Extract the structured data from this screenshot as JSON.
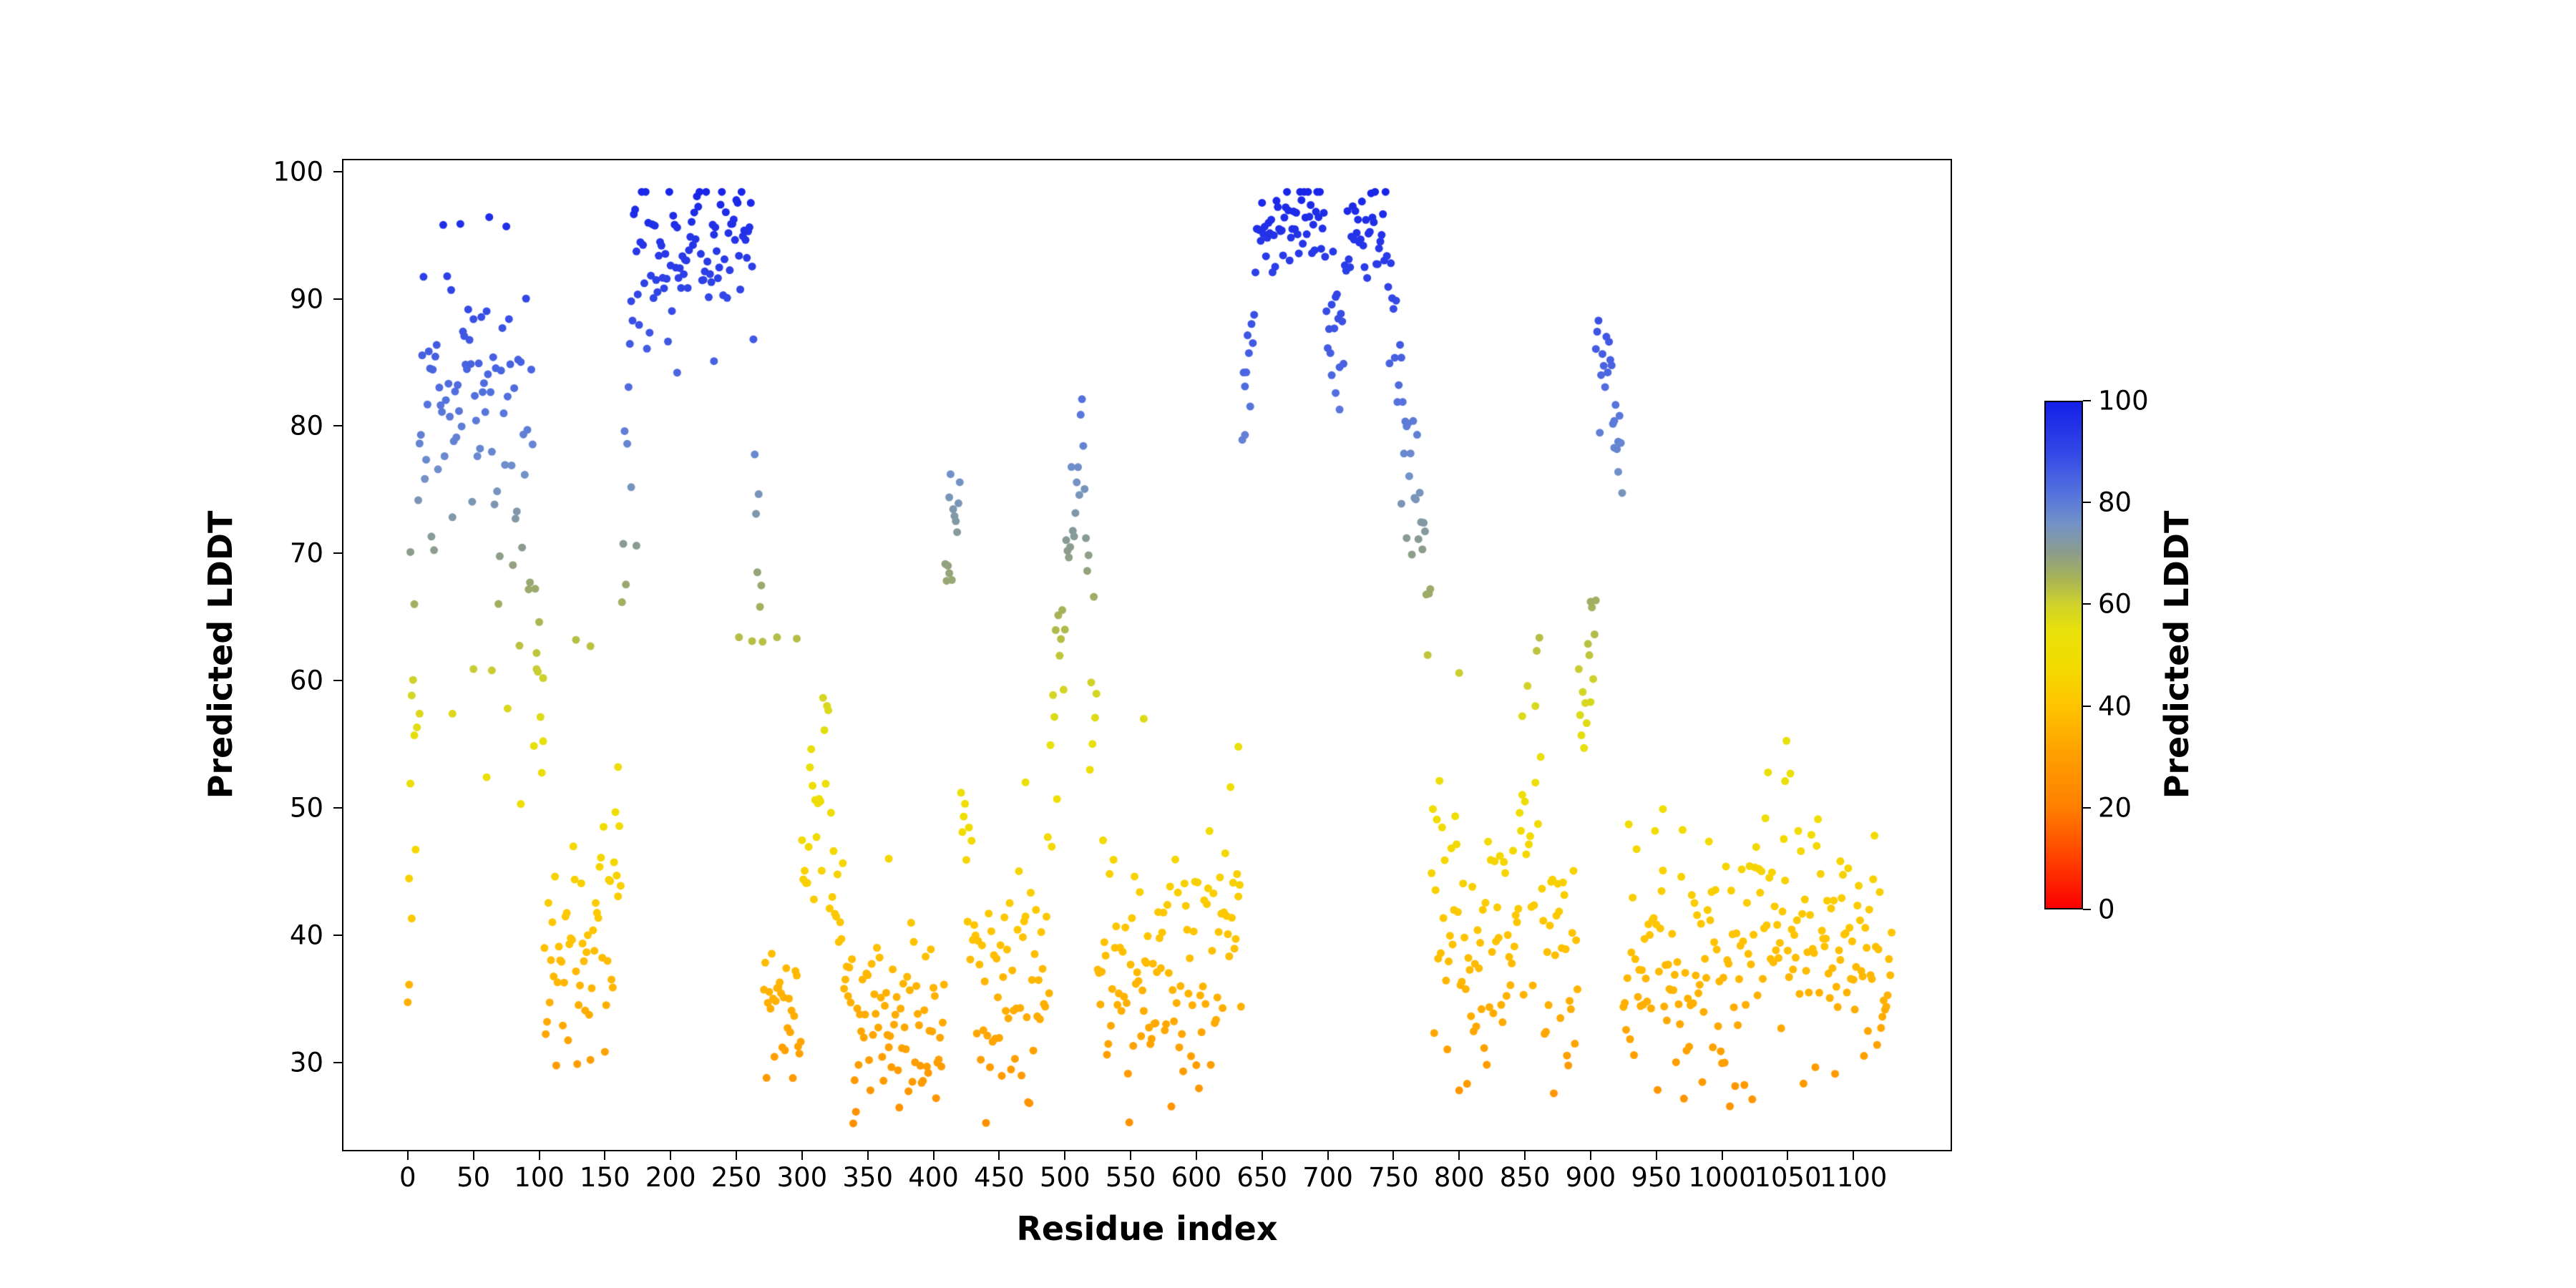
{
  "figure": {
    "background": "#ffffff",
    "text_color": "#000000"
  },
  "chart_data": {
    "type": "scatter",
    "title": "",
    "xlabel": "Residue index",
    "ylabel": "Predicted LDDT",
    "xlim": [
      -50,
      1175
    ],
    "ylim": [
      23,
      101
    ],
    "xticks": [
      0,
      50,
      100,
      150,
      200,
      250,
      300,
      350,
      400,
      450,
      500,
      550,
      600,
      650,
      700,
      750,
      800,
      850,
      900,
      950,
      1000,
      1050,
      1100
    ],
    "yticks": [
      30,
      40,
      50,
      60,
      70,
      80,
      90,
      100
    ],
    "grid": false,
    "legend": "none",
    "marker_radius_px": 5.5,
    "n_residues": 1130,
    "seed": 20,
    "value_clip": [
      25.2,
      98.4
    ],
    "colorbar": {
      "label": "Predicted LDDT",
      "min": 0,
      "max": 100,
      "ticks": [
        0,
        20,
        40,
        60,
        80,
        100
      ],
      "stops": [
        [
          0.0,
          "#fa0000"
        ],
        [
          0.1,
          "#ff4200"
        ],
        [
          0.2,
          "#ff8000"
        ],
        [
          0.3,
          "#ff9e00"
        ],
        [
          0.4,
          "#ffc400"
        ],
        [
          0.48,
          "#f2dc00"
        ],
        [
          0.55,
          "#e8e00a"
        ],
        [
          0.6,
          "#cfd22b"
        ],
        [
          0.65,
          "#a8b455"
        ],
        [
          0.7,
          "#8d9d8a"
        ],
        [
          0.76,
          "#7292c8"
        ],
        [
          0.82,
          "#5472dd"
        ],
        [
          0.9,
          "#3347e6"
        ],
        [
          1.0,
          "#141fe8"
        ]
      ]
    },
    "series_description": "Per-residue predicted LDDT confidence for a ~1130-residue protein; high-confidence domains near residues 10-95, 165-265, 635-780 and 890-925; low-confidence (disordered) regions elsewhere; points colored by the same Predicted LDDT value as the colorbar.",
    "segments_format": [
      "x_start",
      "x_end",
      "mean_start",
      "mean_end",
      "sd"
    ],
    "segments": [
      [
        0,
        8,
        46,
        56,
        9
      ],
      [
        8,
        32,
        80,
        84,
        6
      ],
      [
        32,
        62,
        83,
        83,
        7
      ],
      [
        62,
        96,
        85,
        79,
        7
      ],
      [
        96,
        104,
        62,
        50,
        4
      ],
      [
        104,
        142,
        38,
        38,
        4
      ],
      [
        142,
        163,
        40,
        45,
        4.5
      ],
      [
        163,
        171,
        72,
        90,
        5
      ],
      [
        171,
        200,
        93,
        94,
        3
      ],
      [
        200,
        232,
        93,
        95,
        2.6
      ],
      [
        232,
        263,
        95.5,
        94,
        2.4
      ],
      [
        263,
        271,
        82,
        55,
        7
      ],
      [
        271,
        300,
        34.5,
        35,
        3.5
      ],
      [
        300,
        318,
        42,
        56,
        4
      ],
      [
        318,
        333,
        49,
        36,
        4
      ],
      [
        333,
        396,
        34,
        33,
        4
      ],
      [
        396,
        409,
        31,
        34,
        4
      ],
      [
        409,
        421,
        69,
        73.5,
        2.2
      ],
      [
        421,
        433,
        52,
        40,
        4
      ],
      [
        433,
        489,
        36,
        36,
        4.5
      ],
      [
        489,
        501,
        50,
        66,
        4
      ],
      [
        501,
        515,
        70,
        80,
        2.5
      ],
      [
        515,
        525,
        73,
        50,
        5
      ],
      [
        525,
        601,
        37,
        37,
        4.8
      ],
      [
        601,
        635,
        38,
        40,
        5.2
      ],
      [
        635,
        646,
        81,
        93,
        3
      ],
      [
        646,
        699,
        95,
        96.5,
        1.8
      ],
      [
        699,
        713,
        90,
        87,
        3
      ],
      [
        713,
        746,
        95,
        94.5,
        2.2
      ],
      [
        746,
        763,
        91,
        80,
        3
      ],
      [
        763,
        779,
        78,
        66,
        3
      ],
      [
        779,
        801,
        45,
        42,
        6
      ],
      [
        801,
        846,
        39,
        41,
        5.5
      ],
      [
        846,
        863,
        46,
        48,
        6
      ],
      [
        863,
        891,
        40,
        37,
        5
      ],
      [
        891,
        904,
        56,
        64,
        4
      ],
      [
        904,
        917,
        84,
        88,
        2.8
      ],
      [
        917,
        925,
        80,
        74,
        3
      ],
      [
        925,
        1001,
        37,
        37,
        4.5
      ],
      [
        1001,
        1046,
        37,
        41,
        5
      ],
      [
        1046,
        1061,
        45,
        41,
        5
      ],
      [
        1061,
        1096,
        38,
        40,
        5
      ],
      [
        1096,
        1130,
        40,
        34,
        4.5
      ]
    ],
    "outlier_points": [
      [
        1,
        36.1
      ],
      [
        3,
        41.3
      ],
      [
        2,
        70.1
      ],
      [
        5,
        66.0
      ],
      [
        9,
        57.4
      ],
      [
        34,
        57.4
      ],
      [
        50,
        60.9
      ],
      [
        60,
        52.4
      ],
      [
        64,
        60.8
      ],
      [
        76,
        57.8
      ],
      [
        86,
        50.3
      ],
      [
        98,
        60.9
      ],
      [
        103,
        60.2
      ],
      [
        128,
        63.2
      ],
      [
        139,
        62.7
      ],
      [
        160,
        53.2
      ],
      [
        170,
        75.2
      ],
      [
        174,
        70.6
      ],
      [
        205,
        84.2
      ],
      [
        233,
        85.1
      ],
      [
        252,
        63.4
      ],
      [
        262,
        63.1
      ],
      [
        281,
        63.4
      ],
      [
        296,
        63.3
      ],
      [
        366,
        46.0
      ],
      [
        412,
        74.4
      ],
      [
        470,
        52.0
      ],
      [
        560,
        57.0
      ],
      [
        632,
        54.8
      ],
      [
        637,
        79.3
      ],
      [
        703,
        84.0
      ],
      [
        706,
        82.6
      ],
      [
        709,
        81.3
      ],
      [
        756,
        73.9
      ],
      [
        760,
        71.2
      ],
      [
        800,
        60.6
      ],
      [
        848,
        57.2
      ],
      [
        858,
        58.0
      ],
      [
        900,
        66.2
      ],
      [
        904,
        66.3
      ],
      [
        918,
        78.3
      ],
      [
        921,
        76.4
      ],
      [
        955,
        49.9
      ],
      [
        1048,
        52.1
      ],
      [
        1090,
        45.8
      ]
    ]
  }
}
